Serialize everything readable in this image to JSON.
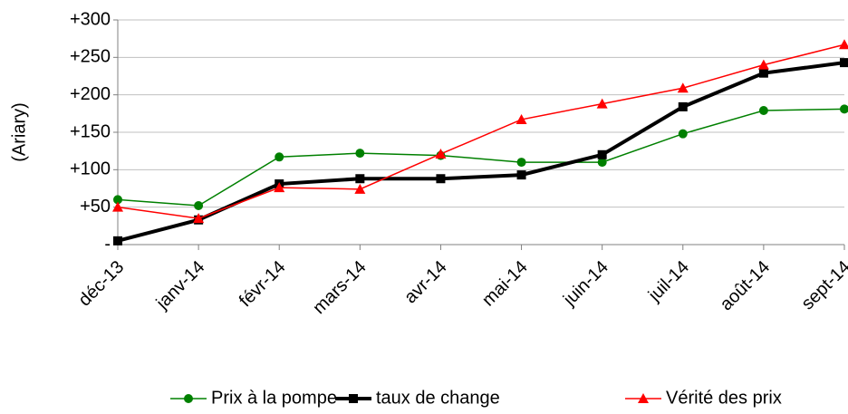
{
  "chart_data": {
    "type": "line",
    "y_label": "(Ariary)",
    "categories": [
      "déc-13",
      "janv-14",
      "févr-14",
      "mars-14",
      "avr-14",
      "mai-14",
      "juin-14",
      "juil-14",
      "août-14",
      "sept-14"
    ],
    "series": [
      {
        "name": "Prix à la pompe",
        "color": "#008000",
        "marker": "circle",
        "values": [
          60,
          52,
          117,
          122,
          119,
          110,
          110,
          148,
          179,
          181
        ]
      },
      {
        "name": "taux de change",
        "color": "#000000",
        "marker": "square",
        "values": [
          5,
          33,
          81,
          88,
          88,
          93,
          120,
          184,
          229,
          243
        ]
      },
      {
        "name": "Vérité des prix",
        "color": "#ff0000",
        "marker": "triangle",
        "values": [
          50,
          35,
          76,
          74,
          121,
          167,
          188,
          209,
          240,
          267
        ]
      }
    ],
    "ylim": [
      0,
      300
    ],
    "yticks": [
      {
        "value": 0,
        "label": "-"
      },
      {
        "value": 50,
        "label": "+50"
      },
      {
        "value": 100,
        "label": "+100"
      },
      {
        "value": 150,
        "label": "+150"
      },
      {
        "value": 200,
        "label": "+200"
      },
      {
        "value": 250,
        "label": "+250"
      },
      {
        "value": 300,
        "label": "+300"
      }
    ],
    "grid": true,
    "legend": "bottom"
  }
}
